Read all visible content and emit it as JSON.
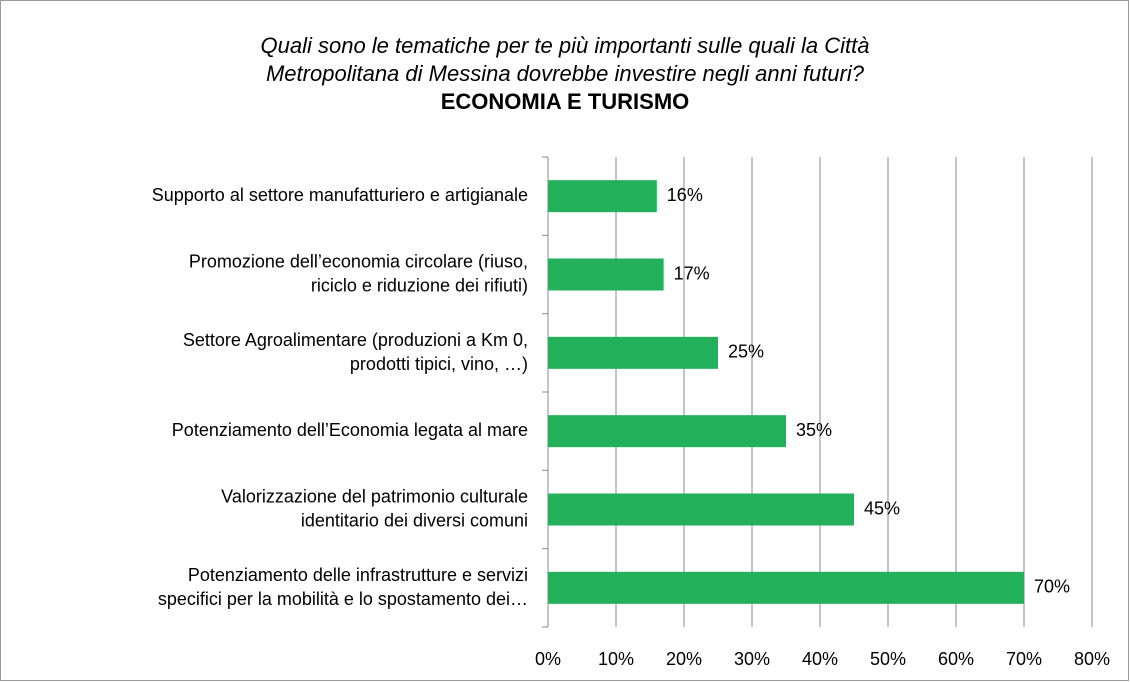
{
  "chart_data": {
    "type": "bar",
    "orientation": "horizontal",
    "title": [
      "Quali sono le tematiche per te più importanti sulle quali la Città",
      "Metropolitana di Messina dovrebbe investire negli anni futuri?"
    ],
    "subtitle": "ECONOMIA E TURISMO",
    "categories": [
      "Supporto al settore manufatturiero e artigianale",
      "Promozione dell’economia circolare (riuso,\nriciclo e riduzione dei rifiuti)",
      "Settore Agroalimentare (produzioni a Km 0,\nprodotti tipici, vino, …)",
      "Potenziamento dell’Economia legata al mare",
      "Valorizzazione del patrimonio culturale\nidentitario dei diversi comuni",
      "Potenziamento delle infrastrutture e servizi\nspecifici per la mobilità e lo spostamento dei…"
    ],
    "values": [
      16,
      17,
      25,
      35,
      45,
      70
    ],
    "value_labels": [
      "16%",
      "17%",
      "25%",
      "35%",
      "45%",
      "70%"
    ],
    "color": "#22b05a",
    "xlim": [
      0,
      80
    ],
    "xticks": [
      {
        "value": 0,
        "label": "0%"
      },
      {
        "value": 10,
        "label": "10%"
      },
      {
        "value": 20,
        "label": "20%"
      },
      {
        "value": 30,
        "label": "30%"
      },
      {
        "value": 40,
        "label": "40%"
      },
      {
        "value": 50,
        "label": "50%"
      },
      {
        "value": 60,
        "label": "60%"
      },
      {
        "value": 70,
        "label": "70%"
      },
      {
        "value": 80,
        "label": "80%"
      }
    ],
    "grid": true
  }
}
